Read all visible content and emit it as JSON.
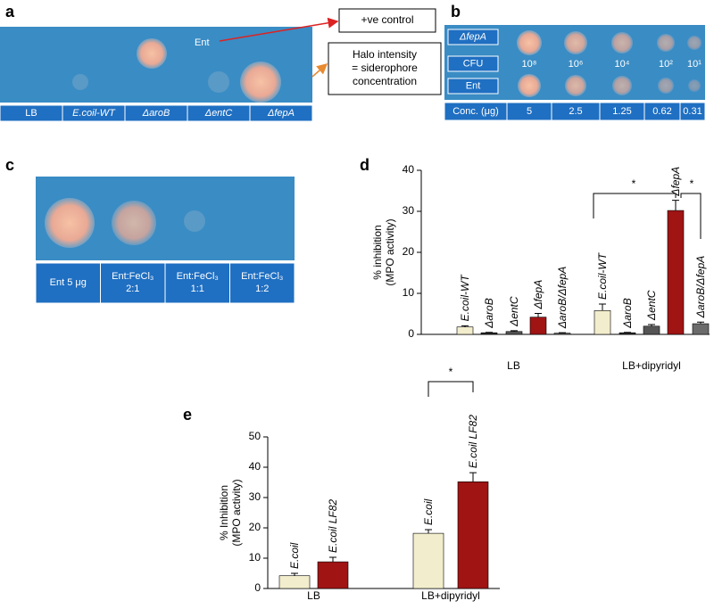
{
  "panels": {
    "a": {
      "label": "a",
      "annotation": "Ent",
      "control_box": "+ve control",
      "halo_box": [
        "Halo intensity",
        "= siderophore",
        "concentration"
      ],
      "strains": [
        "LB",
        "E.coil-WT",
        "ΔaroB",
        "ΔentC",
        "ΔfepA"
      ]
    },
    "b": {
      "label": "b",
      "row_labels": [
        "ΔfepA",
        "CFU",
        "Ent"
      ],
      "cfu": [
        "10⁸",
        "10⁶",
        "10⁴",
        "10²",
        "10¹"
      ],
      "conc_label": "Conc. (μg)",
      "concentrations": [
        5,
        2.5,
        1.25,
        0.62,
        0.31
      ]
    },
    "c": {
      "label": "c",
      "conditions": [
        [
          "Ent 5 μg"
        ],
        [
          "Ent:FeCl₃",
          "2:1"
        ],
        [
          "Ent:FeCl₃",
          "1:1"
        ],
        [
          "Ent:FeCl₃",
          "1:2"
        ]
      ]
    }
  },
  "chart_data": [
    {
      "type": "bar",
      "label": "d",
      "ylabel": [
        "% inhibition",
        "(MPO activity)"
      ],
      "categories": [
        "LB",
        "LB+dipyridyl"
      ],
      "ylim": [
        0,
        40
      ],
      "yticks": [
        0,
        10,
        20,
        30,
        40
      ],
      "series": [
        {
          "name": "E.coil-WT",
          "color": "#f2edcc",
          "values": [
            1.8,
            5.8
          ],
          "errors": [
            0.3,
            1.6
          ]
        },
        {
          "name": "ΔaroB",
          "color": "#2b2b2b",
          "values": [
            0.4,
            0.4
          ],
          "errors": [
            0.1,
            0.1
          ]
        },
        {
          "name": "ΔentC",
          "color": "#555555",
          "values": [
            0.7,
            2.0
          ],
          "errors": [
            0.2,
            0.4
          ]
        },
        {
          "name": "ΔfepA",
          "color": "#a01414",
          "values": [
            4.2,
            30.2
          ],
          "errors": [
            0.9,
            2.5
          ]
        },
        {
          "name": "ΔaroB/ΔfepA",
          "color": "#6b6b6b",
          "values": [
            0.3,
            2.6
          ],
          "errors": [
            0.1,
            0.4
          ]
        }
      ],
      "annotations": [
        "*",
        "*"
      ]
    },
    {
      "type": "bar",
      "label": "e",
      "ylabel": [
        "% Inhibition",
        "(MPO activity)"
      ],
      "categories": [
        "LB",
        "LB+dipyridyl"
      ],
      "ylim": [
        0,
        50
      ],
      "yticks": [
        0,
        10,
        20,
        30,
        40,
        50
      ],
      "series": [
        {
          "name": "E.coil",
          "color": "#f2edcc",
          "values": [
            4.2,
            18.2
          ],
          "errors": [
            0.8,
            1.2
          ]
        },
        {
          "name": "E.coil LF82",
          "color": "#a01414",
          "values": [
            8.8,
            35.2
          ],
          "errors": [
            1.5,
            3.0
          ]
        }
      ],
      "annotations": [
        "*"
      ]
    }
  ]
}
